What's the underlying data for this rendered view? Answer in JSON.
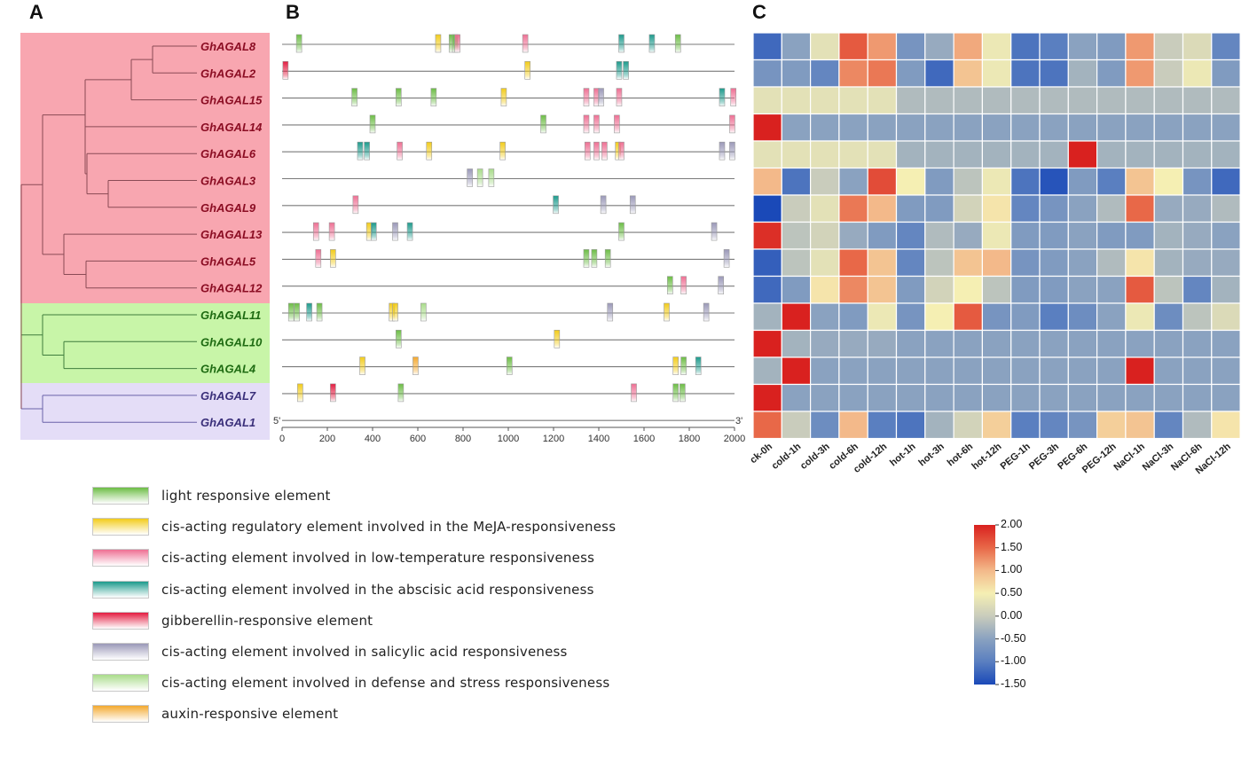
{
  "panels": {
    "a": "A",
    "b": "B",
    "c": "C"
  },
  "genes": [
    {
      "name": "GhAGAL8",
      "group": "red"
    },
    {
      "name": "GhAGAL2",
      "group": "red"
    },
    {
      "name": "GhAGAL15",
      "group": "red"
    },
    {
      "name": "GhAGAL14",
      "group": "red"
    },
    {
      "name": "GhAGAL6",
      "group": "red"
    },
    {
      "name": "GhAGAL3",
      "group": "red"
    },
    {
      "name": "GhAGAL9",
      "group": "red"
    },
    {
      "name": "GhAGAL13",
      "group": "red"
    },
    {
      "name": "GhAGAL5",
      "group": "red"
    },
    {
      "name": "GhAGAL12",
      "group": "red"
    },
    {
      "name": "GhAGAL11",
      "group": "green"
    },
    {
      "name": "GhAGAL10",
      "group": "green"
    },
    {
      "name": "GhAGAL4",
      "group": "green"
    },
    {
      "name": "GhAGAL7",
      "group": "purple"
    },
    {
      "name": "GhAGAL1",
      "group": "purple"
    }
  ],
  "group_colors": {
    "red": "#f8a6b0",
    "green": "#c8f5a8",
    "purple": "#e4ddf7",
    "red_text": "#8b0d23",
    "green_text": "#1e6b12",
    "purple_text": "#3a2f7a"
  },
  "promoter": {
    "end5": "5'",
    "end3": "3'",
    "ticks": [
      "0",
      "200",
      "400",
      "600",
      "800",
      "1000",
      "1200",
      "1400",
      "1600",
      "1800",
      "2000"
    ],
    "elements": [
      {
        "key": "light",
        "color": "#6cbd45",
        "label": "light responsive element"
      },
      {
        "key": "meja",
        "color": "#f2cc1a",
        "label": "cis-acting regulatory element involved in the MeJA-responsiveness"
      },
      {
        "key": "lowtemp",
        "color": "#ee6f93",
        "label": "cis-acting element involved in low-temperature responsiveness"
      },
      {
        "key": "aba",
        "color": "#1c9a8c",
        "label": "cis-acting element involved in the abscisic acid responsiveness"
      },
      {
        "key": "ga",
        "color": "#e31b40",
        "label": "gibberellin-responsive element"
      },
      {
        "key": "sa",
        "color": "#9a98b8",
        "label": "cis-acting element involved in salicylic acid responsiveness"
      },
      {
        "key": "defense",
        "color": "#a9dc8a",
        "label": "cis-acting element involved in defense and stress responsiveness"
      },
      {
        "key": "auxin",
        "color": "#f3a82e",
        "label": "auxin-responsive element"
      }
    ],
    "sites": [
      [
        [
          "light",
          75
        ],
        [
          "meja",
          690
        ],
        [
          "light",
          750
        ],
        [
          "light",
          765
        ],
        [
          "lowtemp",
          775
        ],
        [
          "lowtemp",
          1075
        ],
        [
          "aba",
          1500
        ],
        [
          "aba",
          1635
        ],
        [
          "light",
          1750
        ]
      ],
      [
        [
          "ga",
          15
        ],
        [
          "meja",
          1085
        ],
        [
          "aba",
          1490
        ],
        [
          "aba",
          1520
        ]
      ],
      [
        [
          "light",
          320
        ],
        [
          "light",
          515
        ],
        [
          "light",
          670
        ],
        [
          "meja",
          980
        ],
        [
          "lowtemp",
          1345
        ],
        [
          "lowtemp",
          1390
        ],
        [
          "sa",
          1410
        ],
        [
          "lowtemp",
          1490
        ],
        [
          "aba",
          1945
        ],
        [
          "lowtemp",
          1995
        ]
      ],
      [
        [
          "light",
          400
        ],
        [
          "light",
          1155
        ],
        [
          "lowtemp",
          1345
        ],
        [
          "lowtemp",
          1390
        ],
        [
          "lowtemp",
          1480
        ],
        [
          "lowtemp",
          1990
        ]
      ],
      [
        [
          "aba",
          345
        ],
        [
          "aba",
          375
        ],
        [
          "lowtemp",
          520
        ],
        [
          "meja",
          650
        ],
        [
          "meja",
          975
        ],
        [
          "lowtemp",
          1350
        ],
        [
          "lowtemp",
          1390
        ],
        [
          "lowtemp",
          1425
        ],
        [
          "meja",
          1485
        ],
        [
          "lowtemp",
          1500
        ],
        [
          "sa",
          1945
        ],
        [
          "sa",
          1990
        ]
      ],
      [
        [
          "sa",
          830
        ],
        [
          "defense",
          875
        ],
        [
          "defense",
          925
        ]
      ],
      [
        [
          "lowtemp",
          325
        ],
        [
          "aba",
          1210
        ],
        [
          "sa",
          1420
        ],
        [
          "sa",
          1550
        ]
      ],
      [
        [
          "lowtemp",
          150
        ],
        [
          "lowtemp",
          220
        ],
        [
          "meja",
          385
        ],
        [
          "aba",
          405
        ],
        [
          "sa",
          500
        ],
        [
          "aba",
          565
        ],
        [
          "light",
          1500
        ],
        [
          "sa",
          1910
        ]
      ],
      [
        [
          "lowtemp",
          160
        ],
        [
          "meja",
          225
        ],
        [
          "light",
          1345
        ],
        [
          "light",
          1380
        ],
        [
          "light",
          1440
        ],
        [
          "sa",
          1965
        ]
      ],
      [
        [
          "light",
          1715
        ],
        [
          "lowtemp",
          1775
        ],
        [
          "sa",
          1940
        ]
      ],
      [
        [
          "light",
          40
        ],
        [
          "light",
          65
        ],
        [
          "aba",
          120
        ],
        [
          "light",
          165
        ],
        [
          "meja",
          485
        ],
        [
          "meja",
          500
        ],
        [
          "defense",
          625
        ],
        [
          "sa",
          1450
        ],
        [
          "meja",
          1700
        ],
        [
          "sa",
          1875
        ]
      ],
      [
        [
          "light",
          515
        ],
        [
          "meja",
          1215
        ]
      ],
      [
        [
          "meja",
          355
        ],
        [
          "auxin",
          590
        ],
        [
          "light",
          1005
        ],
        [
          "meja",
          1740
        ],
        [
          "light",
          1775
        ],
        [
          "aba",
          1840
        ]
      ],
      [
        [
          "meja",
          80
        ],
        [
          "ga",
          225
        ],
        [
          "light",
          525
        ],
        [
          "lowtemp",
          1555
        ],
        [
          "light",
          1740
        ],
        [
          "light",
          1770
        ]
      ],
      []
    ]
  },
  "heatmap": {
    "columns": [
      "ck-0h",
      "cold-1h",
      "cold-3h",
      "cold-6h",
      "cold-12h",
      "hot-1h",
      "hot-3h",
      "hot-6h",
      "hot-12h",
      "PEG-1h",
      "PEG-3h",
      "PEG-6h",
      "PEG-12h",
      "NaCl-1h",
      "NaCl-3h",
      "NaCl-6h",
      "NaCl-12h"
    ],
    "values": [
      [
        -1.2,
        -0.5,
        0.3,
        1.6,
        1.2,
        -0.7,
        -0.4,
        1.1,
        0.4,
        -1.1,
        -1.0,
        -0.5,
        -0.6,
        1.2,
        0.0,
        0.2,
        -0.9
      ],
      [
        -0.7,
        -0.6,
        -0.9,
        1.3,
        1.4,
        -0.6,
        -1.2,
        0.9,
        0.4,
        -1.1,
        -1.1,
        -0.3,
        -0.6,
        1.2,
        0.0,
        0.4,
        -0.6
      ],
      [
        0.3,
        0.3,
        0.3,
        0.3,
        0.3,
        -0.2,
        -0.2,
        -0.2,
        -0.2,
        -0.2,
        -0.2,
        -0.2,
        -0.2,
        -0.2,
        -0.2,
        -0.2,
        -0.2
      ],
      [
        2.0,
        -0.5,
        -0.5,
        -0.5,
        -0.5,
        -0.5,
        -0.5,
        -0.5,
        -0.5,
        -0.5,
        -0.5,
        -0.5,
        -0.5,
        -0.5,
        -0.5,
        -0.5,
        -0.5
      ],
      [
        0.3,
        0.3,
        0.3,
        0.3,
        0.3,
        -0.3,
        -0.3,
        -0.3,
        -0.3,
        -0.3,
        -0.3,
        2.0,
        -0.3,
        -0.3,
        -0.3,
        -0.3,
        -0.3
      ],
      [
        1.0,
        -1.1,
        0.0,
        -0.5,
        1.7,
        0.5,
        -0.6,
        -0.1,
        0.4,
        -1.1,
        -1.4,
        -0.6,
        -1.0,
        0.9,
        0.5,
        -0.7,
        -1.2
      ],
      [
        -1.5,
        0.0,
        0.3,
        1.4,
        1.0,
        -0.6,
        -0.6,
        0.1,
        0.6,
        -0.9,
        -0.7,
        -0.5,
        -0.2,
        1.5,
        -0.4,
        -0.4,
        -0.2
      ],
      [
        1.9,
        -0.1,
        0.1,
        -0.4,
        -0.6,
        -0.9,
        -0.2,
        -0.4,
        0.4,
        -0.6,
        -0.6,
        -0.5,
        -0.6,
        -0.6,
        -0.3,
        -0.4,
        -0.5
      ],
      [
        -1.3,
        -0.1,
        0.3,
        1.5,
        0.9,
        -0.9,
        -0.1,
        0.9,
        1.0,
        -0.7,
        -0.6,
        -0.5,
        -0.2,
        0.6,
        -0.3,
        -0.4,
        -0.4
      ],
      [
        -1.2,
        -0.6,
        0.6,
        1.3,
        0.9,
        -0.6,
        0.1,
        0.5,
        -0.1,
        -0.6,
        -0.6,
        -0.5,
        -0.5,
        1.6,
        -0.1,
        -0.9,
        -0.3
      ],
      [
        -0.3,
        2.0,
        -0.5,
        -0.6,
        0.4,
        -0.7,
        0.5,
        1.6,
        -0.7,
        -0.6,
        -1.0,
        -0.8,
        -0.5,
        0.4,
        -0.8,
        -0.1,
        0.2
      ],
      [
        2.0,
        -0.3,
        -0.4,
        -0.4,
        -0.4,
        -0.5,
        -0.5,
        -0.5,
        -0.5,
        -0.5,
        -0.5,
        -0.5,
        -0.5,
        -0.5,
        -0.5,
        -0.5,
        -0.5
      ],
      [
        -0.3,
        2.0,
        -0.5,
        -0.5,
        -0.5,
        -0.5,
        -0.5,
        -0.5,
        -0.5,
        -0.5,
        -0.5,
        -0.5,
        -0.5,
        2.0,
        -0.5,
        -0.5,
        -0.5
      ],
      [
        2.0,
        -0.5,
        -0.5,
        -0.5,
        -0.5,
        -0.5,
        -0.5,
        -0.5,
        -0.5,
        -0.5,
        -0.5,
        -0.5,
        -0.5,
        -0.5,
        -0.5,
        -0.5,
        -0.5
      ],
      [
        1.5,
        0.0,
        -0.8,
        1.0,
        -1.0,
        -1.1,
        -0.3,
        0.1,
        0.8,
        -1.0,
        -0.9,
        -0.7,
        0.8,
        0.9,
        -0.9,
        -0.2,
        0.6
      ]
    ],
    "colorbar": {
      "min": -1.5,
      "max": 2.0,
      "labels": [
        "2.00",
        "1.50",
        "1.00",
        "0.50",
        "0.00",
        "-0.50",
        "-1.00",
        "-1.50"
      ],
      "stops": [
        "#1a49b8",
        "#5a7fc0",
        "#8aa2c0",
        "#c9ccbc",
        "#f5efb3",
        "#f3b98a",
        "#e86848",
        "#d9211f"
      ]
    }
  },
  "chart_data": {
    "type": "heatmap",
    "title": "",
    "rows": [
      "GhAGAL8",
      "GhAGAL2",
      "GhAGAL15",
      "GhAGAL14",
      "GhAGAL6",
      "GhAGAL3",
      "GhAGAL9",
      "GhAGAL13",
      "GhAGAL5",
      "GhAGAL12",
      "GhAGAL11",
      "GhAGAL10",
      "GhAGAL4",
      "GhAGAL7",
      "GhAGAL1"
    ],
    "columns": [
      "ck-0h",
      "cold-1h",
      "cold-3h",
      "cold-6h",
      "cold-12h",
      "hot-1h",
      "hot-3h",
      "hot-6h",
      "hot-12h",
      "PEG-1h",
      "PEG-3h",
      "PEG-6h",
      "PEG-12h",
      "NaCl-1h",
      "NaCl-3h",
      "NaCl-6h",
      "NaCl-12h"
    ],
    "value_range": [
      -1.5,
      2.0
    ],
    "note": "values stored in heatmap.values (relative expression, z-scaled)"
  }
}
